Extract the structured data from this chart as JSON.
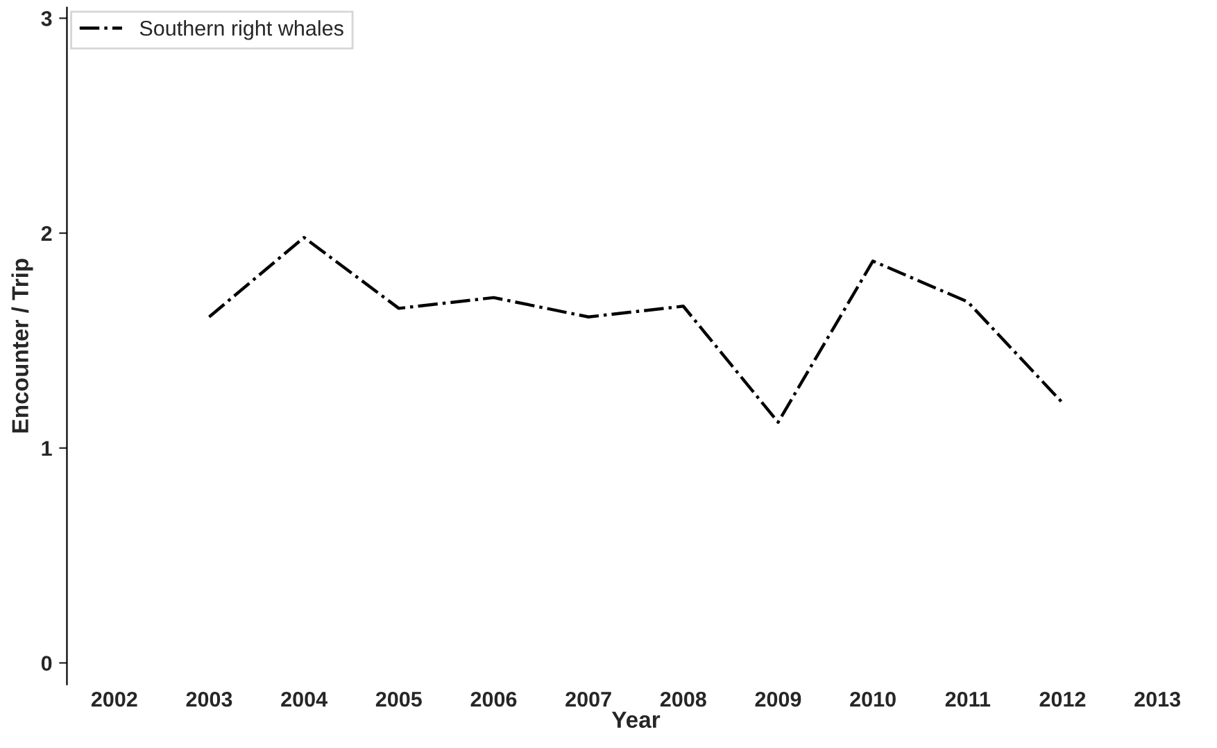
{
  "chart_data": {
    "type": "line",
    "xlabel": "Year",
    "ylabel": "Encounter / Trip",
    "categories": [
      "2002",
      "2003",
      "2004",
      "2005",
      "2006",
      "2007",
      "2008",
      "2009",
      "2010",
      "2011",
      "2012",
      "2013"
    ],
    "series": [
      {
        "name": "Southern right whales",
        "color": "#000000",
        "values": [
          null,
          1.61,
          1.98,
          1.65,
          1.7,
          1.61,
          1.66,
          1.12,
          1.87,
          1.68,
          1.21,
          null
        ]
      }
    ],
    "ylim": [
      -0.1,
      3.05
    ],
    "yticks": [
      0,
      1,
      2,
      3
    ],
    "grid": false,
    "legend": "top left",
    "line_style": "dashdot",
    "marker": "none"
  }
}
